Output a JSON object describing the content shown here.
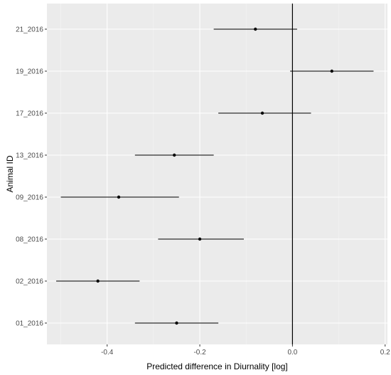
{
  "colors": {
    "panel_background": "#ebebeb",
    "grid_major": "#ffffff",
    "grid_minor": "#f5f5f5",
    "point": "#000000",
    "errorbar": "#000000",
    "zero_line": "#000000"
  },
  "chart_data": {
    "type": "scatter",
    "subtype": "forest-plot-with-horizontal-error-bars",
    "xlabel": "Predicted difference in Diurnality [log]",
    "ylabel": "Animal ID",
    "xlim": [
      -0.53,
      0.205
    ],
    "x_ticks": [
      -0.4,
      -0.2,
      0.0,
      0.2
    ],
    "x_tick_labels": [
      "-0.4",
      "-0.2",
      "0.0",
      "0.2"
    ],
    "reference_line_x": 0.0,
    "grid": true,
    "categories": [
      "01_2016",
      "02_2016",
      "08_2016",
      "09_2016",
      "13_2016",
      "17_2016",
      "19_2016",
      "21_2016"
    ],
    "estimates": [
      -0.25,
      -0.42,
      -0.2,
      -0.375,
      -0.255,
      -0.065,
      0.085,
      -0.08
    ],
    "lower": [
      -0.34,
      -0.51,
      -0.29,
      -0.5,
      -0.34,
      -0.16,
      -0.005,
      -0.17
    ],
    "upper": [
      -0.16,
      -0.33,
      -0.105,
      -0.245,
      -0.17,
      0.04,
      0.175,
      0.01
    ]
  }
}
